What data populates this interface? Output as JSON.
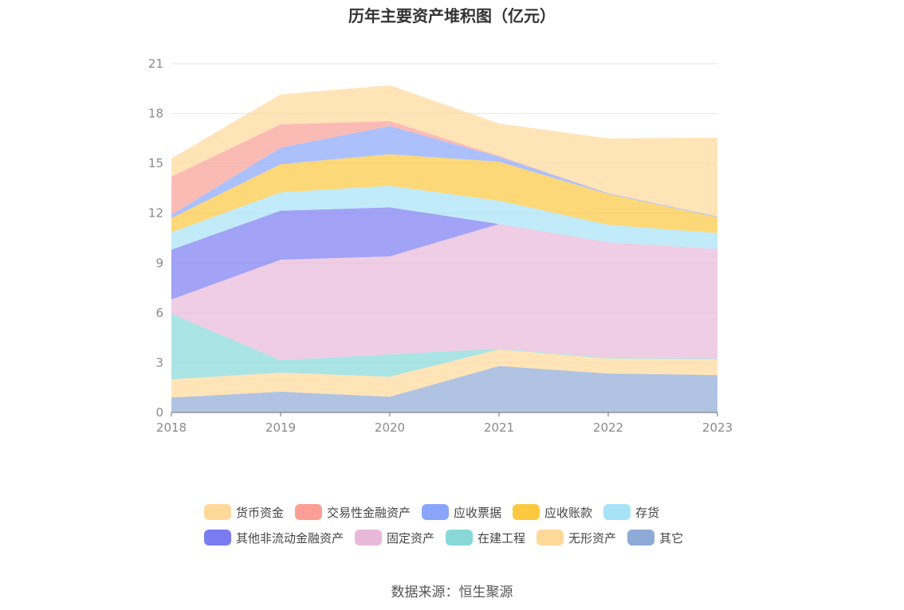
{
  "chart_data": {
    "type": "area",
    "stacked": true,
    "title": "历年主要资产堆积图（亿元）",
    "x": [
      "2018",
      "2019",
      "2020",
      "2021",
      "2022",
      "2023"
    ],
    "ylim": [
      0,
      21
    ],
    "yticks": [
      0,
      3,
      6,
      9,
      12,
      15,
      18,
      21
    ],
    "grid": true,
    "legend_position": "bottom",
    "series": [
      {
        "name": "其它",
        "color": "#8eaad6",
        "values": [
          0.9,
          1.25,
          0.95,
          2.8,
          2.35,
          2.25
        ]
      },
      {
        "name": "无形资产",
        "color": "#ffd99a",
        "values": [
          1.1,
          1.15,
          1.2,
          1.0,
          0.9,
          0.95
        ]
      },
      {
        "name": "在建工程",
        "color": "#88d8d8",
        "values": [
          3.95,
          0.75,
          1.35,
          0.05,
          0.05,
          0.05
        ]
      },
      {
        "name": "固定资产",
        "color": "#e8b8d8",
        "values": [
          0.85,
          6.05,
          5.9,
          7.5,
          6.95,
          6.6
        ]
      },
      {
        "name": "其他非流动金融资产",
        "color": "#7b7bf2",
        "values": [
          3.0,
          2.95,
          2.95,
          0.0,
          0.0,
          0.0
        ]
      },
      {
        "name": "存货",
        "color": "#a6e3f7",
        "values": [
          1.05,
          1.1,
          1.3,
          1.4,
          1.05,
          0.95
        ]
      },
      {
        "name": "应收账款",
        "color": "#fcc840",
        "values": [
          0.85,
          1.7,
          1.9,
          2.35,
          1.85,
          0.95
        ]
      },
      {
        "name": "应收票据",
        "color": "#89a6fb",
        "values": [
          0.2,
          1.0,
          1.7,
          0.3,
          0.05,
          0.05
        ]
      },
      {
        "name": "交易性金融资产",
        "color": "#fa9e96",
        "values": [
          2.3,
          1.4,
          0.3,
          0.05,
          0.0,
          0.0
        ]
      },
      {
        "name": "货币资金",
        "color": "#ffd99a",
        "values": [
          1.1,
          1.8,
          2.15,
          1.95,
          3.3,
          4.75
        ]
      }
    ]
  },
  "legend_rows": [
    [
      {
        "name": "货币资金",
        "color": "#ffd99a"
      },
      {
        "name": "交易性金融资产",
        "color": "#fa9e96"
      },
      {
        "name": "应收票据",
        "color": "#89a6fb"
      },
      {
        "name": "应收账款",
        "color": "#fcc840"
      },
      {
        "name": "存货",
        "color": "#a6e3f7"
      }
    ],
    [
      {
        "name": "其他非流动金融资产",
        "color": "#7b7bf2"
      },
      {
        "name": "固定资产",
        "color": "#e8b8d8"
      },
      {
        "name": "在建工程",
        "color": "#88d8d8"
      },
      {
        "name": "无形资产",
        "color": "#ffd99a"
      },
      {
        "name": "其它",
        "color": "#8eaad6"
      }
    ]
  ],
  "source": "数据来源：恒生聚源"
}
